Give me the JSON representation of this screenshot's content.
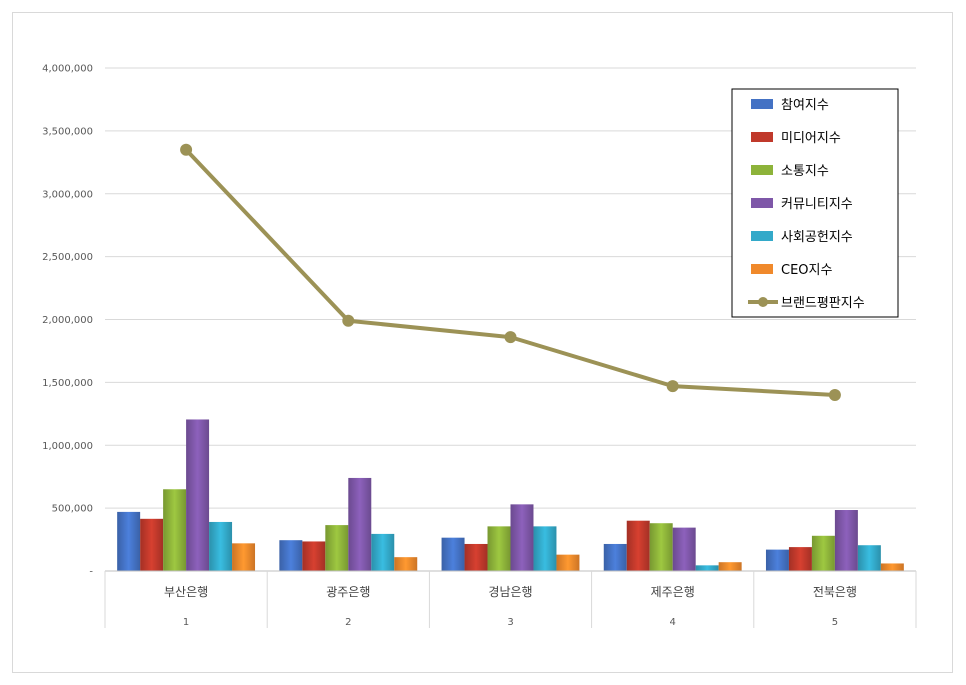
{
  "chart_data": {
    "type": "bar",
    "categories": [
      "부산은행",
      "광주은행",
      "경남은행",
      "제주은행",
      "전북은행"
    ],
    "category_numbers": [
      "1",
      "2",
      "3",
      "4",
      "5"
    ],
    "y_ticks": [
      "-",
      "500,000",
      "1,000,000",
      "1,500,000",
      "2,000,000",
      "2,500,000",
      "3,000,000",
      "3,500,000",
      "4,000,000"
    ],
    "ylim": [
      0,
      4000000
    ],
    "grid": true,
    "legend_position": "top-right",
    "series": [
      {
        "name": "참여지수",
        "type": "bar",
        "color": "#4472C4",
        "values": [
          470000,
          245000,
          265000,
          215000,
          170000
        ]
      },
      {
        "name": "미디어지수",
        "type": "bar",
        "color": "#C0392B",
        "values": [
          415000,
          235000,
          215000,
          400000,
          190000
        ]
      },
      {
        "name": "소통지수",
        "type": "bar",
        "color": "#8DB33A",
        "values": [
          650000,
          365000,
          355000,
          380000,
          280000
        ]
      },
      {
        "name": "커뮤니티지수",
        "type": "bar",
        "color": "#7E57A8",
        "values": [
          1205000,
          740000,
          530000,
          345000,
          485000
        ]
      },
      {
        "name": "사회공헌지수",
        "type": "bar",
        "color": "#33A9C9",
        "values": [
          390000,
          295000,
          355000,
          45000,
          205000
        ]
      },
      {
        "name": "CEO지수",
        "type": "bar",
        "color": "#F0892B",
        "values": [
          220000,
          110000,
          130000,
          70000,
          60000
        ]
      },
      {
        "name": "브랜드평판지수",
        "type": "line",
        "color": "#9C9256",
        "values": [
          3350000,
          1990000,
          1860000,
          1470000,
          1400000
        ]
      }
    ]
  }
}
